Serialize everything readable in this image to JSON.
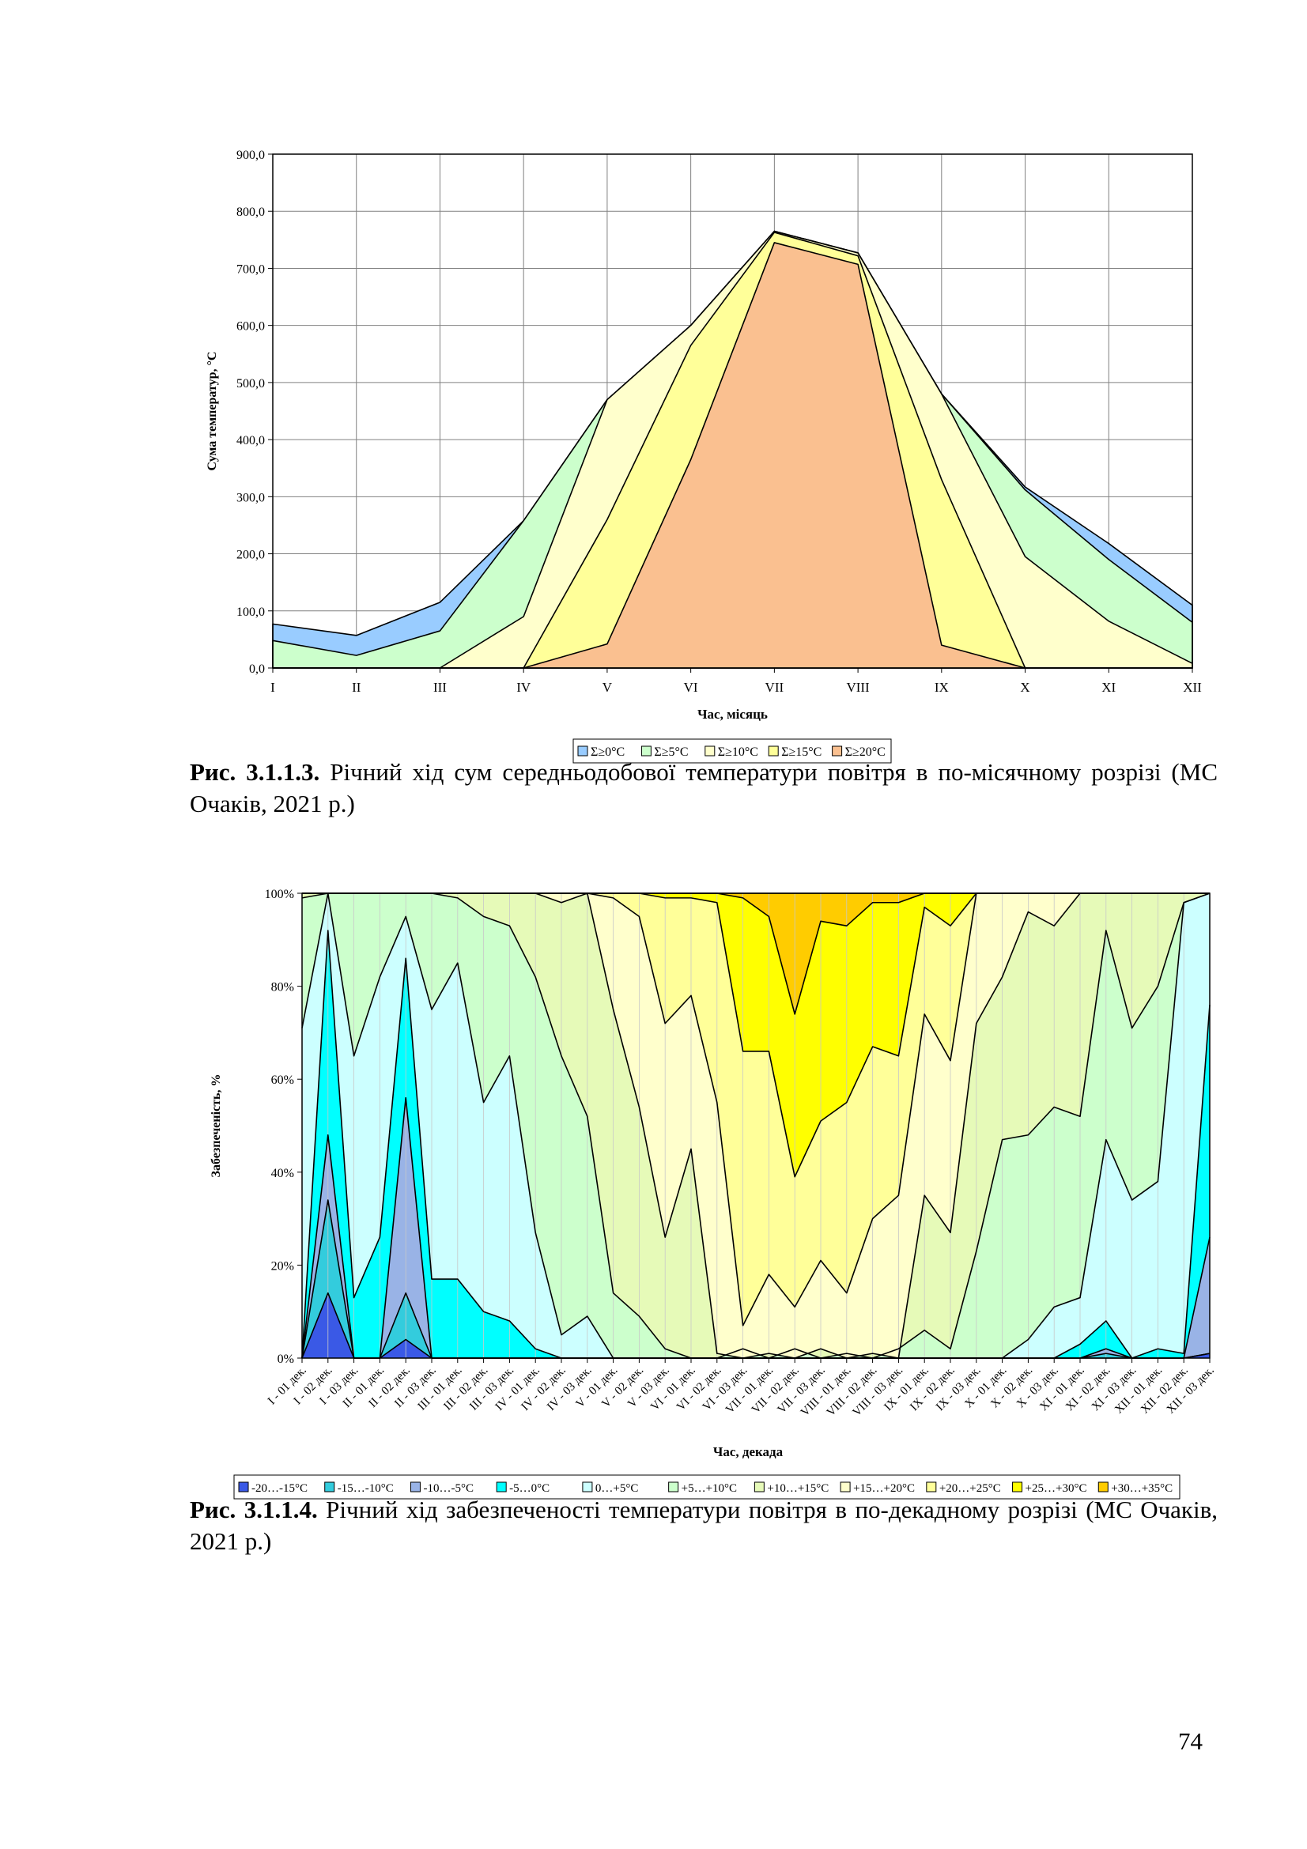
{
  "chart_data": [
    {
      "type": "area",
      "ylabel": "Сума температур, °C",
      "xlabel": "Час, місяць",
      "ylim": [
        0,
        900
      ],
      "y_ticks": [
        "0,0",
        "100,0",
        "200,0",
        "300,0",
        "400,0",
        "500,0",
        "600,0",
        "700,0",
        "800,0",
        "900,0"
      ],
      "categories": [
        "I",
        "II",
        "III",
        "IV",
        "V",
        "VI",
        "VII",
        "VIII",
        "IX",
        "X",
        "XI",
        "XII"
      ],
      "legend_position": "bottom",
      "grid": true,
      "series": [
        {
          "name": "Σ≥0°C",
          "color": "#99ccff",
          "values": [
            77,
            57,
            115,
            258,
            470,
            600,
            765,
            727,
            480,
            317,
            218,
            110
          ]
        },
        {
          "name": "Σ≥5°C",
          "color": "#ccffcc",
          "values": [
            48,
            22,
            65,
            258,
            470,
            600,
            765,
            727,
            480,
            312,
            190,
            80
          ]
        },
        {
          "name": "Σ≥10°C",
          "color": "#ffffcc",
          "values": [
            0,
            0,
            0,
            90,
            470,
            600,
            765,
            727,
            480,
            195,
            82,
            8
          ]
        },
        {
          "name": "Σ≥15°C",
          "color": "#ffff99",
          "values": [
            0,
            0,
            0,
            0,
            260,
            565,
            763,
            722,
            330,
            0,
            0,
            0
          ]
        },
        {
          "name": "Σ≥20°C",
          "color": "#fac090",
          "values": [
            0,
            0,
            0,
            0,
            42,
            365,
            745,
            707,
            40,
            0,
            0,
            0
          ]
        }
      ]
    },
    {
      "type": "area",
      "stacked": true,
      "ylabel": "Забезпеченість, %",
      "xlabel": "Час, декада",
      "ylim": [
        0,
        100
      ],
      "y_ticks": [
        "0%",
        "20%",
        "40%",
        "60%",
        "80%",
        "100%"
      ],
      "categories": [
        "I - 01 дек.",
        "I - 02 дек.",
        "I - 03 дек.",
        "II - 01 дек.",
        "II - 02 дек.",
        "II - 03 дек.",
        "III - 01 дек.",
        "III - 02 дек.",
        "III - 03 дек.",
        "IV - 01 дек.",
        "IV - 02 дек.",
        "IV - 03 дек.",
        "V - 01 дек.",
        "V - 02 дек.",
        "V - 03 дек.",
        "VI - 01 дек.",
        "VI - 02 дек.",
        "VI - 03 дек.",
        "VII - 01 дек.",
        "VII - 02 дек.",
        "VII - 03 дек.",
        "VIII - 01 дек.",
        "VIII - 02 дек.",
        "VIII - 03 дек.",
        "IX - 01 дек.",
        "IX - 02 дек.",
        "IX - 03 дек.",
        "X - 01 дек.",
        "X - 02 дек.",
        "X - 03 дек.",
        "XI - 01 дек.",
        "XI - 02 дек.",
        "XI - 03 дек.",
        "XII - 01 дек.",
        "XII - 02 дек.",
        "XII - 03 дек."
      ],
      "legend_position": "bottom",
      "grid": false,
      "cumulative_boundaries": [
        [
          0,
          14,
          0,
          0,
          4,
          0,
          0,
          0,
          0,
          0,
          0,
          0,
          0,
          0,
          0,
          0,
          0,
          0,
          0,
          0,
          0,
          0,
          0,
          0,
          0,
          0,
          0,
          0,
          0,
          0,
          0,
          0,
          0,
          0,
          0,
          1
        ],
        [
          0,
          34,
          0,
          0,
          14,
          0,
          0,
          0,
          0,
          0,
          0,
          0,
          0,
          0,
          0,
          0,
          0,
          0,
          0,
          0,
          0,
          0,
          0,
          0,
          0,
          0,
          0,
          0,
          0,
          0,
          0,
          1,
          0,
          0,
          0,
          1
        ],
        [
          0,
          48,
          0,
          0,
          56,
          0,
          0,
          0,
          0,
          0,
          0,
          0,
          0,
          0,
          0,
          0,
          0,
          0,
          0,
          0,
          0,
          0,
          0,
          0,
          0,
          0,
          0,
          0,
          0,
          0,
          0,
          2,
          0,
          0,
          0,
          26
        ],
        [
          0,
          92,
          13,
          26,
          86,
          17,
          17,
          10,
          8,
          2,
          0,
          0,
          0,
          0,
          0,
          0,
          0,
          0,
          0,
          0,
          0,
          0,
          0,
          0,
          0,
          0,
          0,
          0,
          0,
          0,
          3,
          8,
          0,
          2,
          1,
          76
        ],
        [
          71,
          100,
          65,
          82,
          95,
          75,
          85,
          55,
          65,
          27,
          5,
          9,
          0,
          0,
          0,
          0,
          0,
          0,
          0,
          0,
          0,
          0,
          0,
          0,
          0,
          0,
          0,
          0,
          4,
          11,
          13,
          47,
          34,
          38,
          98,
          100
        ],
        [
          99,
          100,
          100,
          100,
          100,
          100,
          99,
          95,
          93,
          82,
          65,
          52,
          14,
          9,
          2,
          0,
          0,
          2,
          0,
          2,
          0,
          1,
          0,
          2,
          6,
          2,
          23,
          47,
          48,
          54,
          52,
          92,
          71,
          80,
          98,
          100
        ],
        [
          100,
          100,
          100,
          100,
          100,
          100,
          100,
          100,
          100,
          100,
          98,
          100,
          75,
          54,
          26,
          45,
          1,
          0,
          1,
          0,
          2,
          0,
          1,
          0,
          35,
          27,
          72,
          82,
          96,
          93,
          100,
          100,
          100,
          100,
          100,
          100
        ],
        [
          100,
          100,
          100,
          100,
          100,
          100,
          100,
          100,
          100,
          100,
          100,
          100,
          99,
          95,
          72,
          78,
          55,
          7,
          18,
          11,
          21,
          14,
          30,
          35,
          74,
          64,
          100,
          100,
          100,
          100,
          100,
          100,
          100,
          100,
          100,
          100
        ],
        [
          100,
          100,
          100,
          100,
          100,
          100,
          100,
          100,
          100,
          100,
          100,
          100,
          100,
          100,
          99,
          99,
          98,
          66,
          66,
          39,
          51,
          55,
          67,
          65,
          97,
          93,
          100,
          100,
          100,
          100,
          100,
          100,
          100,
          100,
          100,
          100
        ],
        [
          100,
          100,
          100,
          100,
          100,
          100,
          100,
          100,
          100,
          100,
          100,
          100,
          100,
          100,
          100,
          100,
          100,
          99,
          95,
          74,
          94,
          93,
          98,
          98,
          100,
          100,
          100,
          100,
          100,
          100,
          100,
          100,
          100,
          100,
          100,
          100
        ],
        [
          100,
          100,
          100,
          100,
          100,
          100,
          100,
          100,
          100,
          100,
          100,
          100,
          100,
          100,
          100,
          100,
          100,
          100,
          100,
          100,
          100,
          100,
          100,
          100,
          100,
          100,
          100,
          100,
          100,
          100,
          100,
          100,
          100,
          100,
          100,
          100
        ],
        [
          100,
          100,
          100,
          100,
          100,
          100,
          100,
          100,
          100,
          100,
          100,
          100,
          100,
          100,
          100,
          100,
          100,
          100,
          100,
          100,
          100,
          100,
          100,
          100,
          100,
          100,
          100,
          100,
          100,
          100,
          100,
          100,
          100,
          100,
          100,
          100
        ]
      ],
      "series": [
        {
          "name": "-20…-15°C",
          "color": "#3a59e6"
        },
        {
          "name": "-15…-10°C",
          "color": "#33ccdd"
        },
        {
          "name": "-10…-5°C",
          "color": "#99b3e6"
        },
        {
          "name": "-5…0°C",
          "color": "#00ffff"
        },
        {
          "name": "0…+5°C",
          "color": "#ccffff"
        },
        {
          "name": "+5…+10°C",
          "color": "#ccffcc"
        },
        {
          "name": "+10…+15°C",
          "color": "#e6fab8"
        },
        {
          "name": "+15…+20°C",
          "color": "#ffffcc"
        },
        {
          "name": "+20…+25°C",
          "color": "#ffff99"
        },
        {
          "name": "+25…+30°C",
          "color": "#ffff00"
        },
        {
          "name": "+30…+35°C",
          "color": "#ffcc00"
        },
        {
          "name": "",
          "color": "#ffcc00"
        }
      ]
    }
  ],
  "captions": {
    "fig1_number": "Рис. 3.1.1.3.",
    "fig1_text": " Річний хід сум середньодобової температури повітря в по-місячному розрізі (МС Очаків, 2021 р.)",
    "fig2_number": "Рис. 3.1.1.4.",
    "fig2_text": " Річний хід забезпеченості температури повітря в по-декадному розрізі (МС Очаків, 2021 р.)"
  },
  "page_number": "74"
}
